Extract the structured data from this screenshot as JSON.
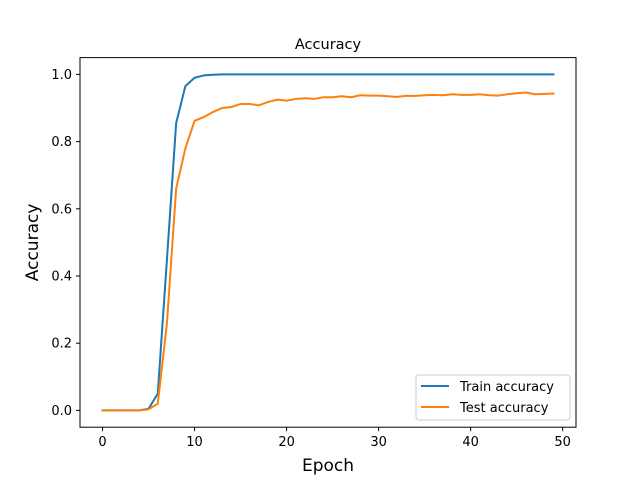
{
  "chart_data": {
    "type": "line",
    "title": "Accuracy",
    "xlabel": "Epoch",
    "ylabel": "Accuracy",
    "xlim": [
      -2.45,
      51.45
    ],
    "ylim": [
      -0.05,
      1.05
    ],
    "xticks": [
      0,
      10,
      20,
      30,
      40,
      50
    ],
    "yticks": [
      0.0,
      0.2,
      0.4,
      0.6,
      0.8,
      1.0
    ],
    "xtick_labels": [
      "0",
      "10",
      "20",
      "30",
      "40",
      "50"
    ],
    "ytick_labels": [
      "0.0",
      "0.2",
      "0.4",
      "0.6",
      "0.8",
      "1.0"
    ],
    "grid": false,
    "legend_position": "bottom-right",
    "x": [
      0,
      1,
      2,
      3,
      4,
      5,
      6,
      7,
      8,
      9,
      10,
      11,
      12,
      13,
      14,
      15,
      16,
      17,
      18,
      19,
      20,
      21,
      22,
      23,
      24,
      25,
      26,
      27,
      28,
      29,
      30,
      31,
      32,
      33,
      34,
      35,
      36,
      37,
      38,
      39,
      40,
      41,
      42,
      43,
      44,
      45,
      46,
      47,
      48,
      49
    ],
    "series": [
      {
        "name": "Train accuracy",
        "color": "#1f77b4",
        "values": [
          0.0,
          0.0,
          0.0,
          0.0,
          0.0,
          0.005,
          0.05,
          0.45,
          0.855,
          0.965,
          0.99,
          0.997,
          0.999,
          1.0,
          1.0,
          1.0,
          1.0,
          1.0,
          1.0,
          1.0,
          1.0,
          1.0,
          1.0,
          1.0,
          1.0,
          1.0,
          1.0,
          1.0,
          1.0,
          1.0,
          1.0,
          1.0,
          1.0,
          1.0,
          1.0,
          1.0,
          1.0,
          1.0,
          1.0,
          1.0,
          1.0,
          1.0,
          1.0,
          1.0,
          1.0,
          1.0,
          1.0,
          1.0,
          1.0,
          1.0
        ]
      },
      {
        "name": "Test accuracy",
        "color": "#ff7f0e",
        "values": [
          0.0,
          0.0,
          0.0,
          0.0,
          0.0,
          0.003,
          0.02,
          0.26,
          0.66,
          0.78,
          0.862,
          0.873,
          0.888,
          0.9,
          0.903,
          0.912,
          0.912,
          0.908,
          0.918,
          0.925,
          0.922,
          0.927,
          0.929,
          0.927,
          0.932,
          0.932,
          0.935,
          0.932,
          0.938,
          0.937,
          0.937,
          0.935,
          0.933,
          0.936,
          0.936,
          0.938,
          0.939,
          0.938,
          0.941,
          0.939,
          0.939,
          0.941,
          0.938,
          0.937,
          0.941,
          0.944,
          0.946,
          0.941,
          0.942,
          0.943
        ]
      }
    ]
  }
}
